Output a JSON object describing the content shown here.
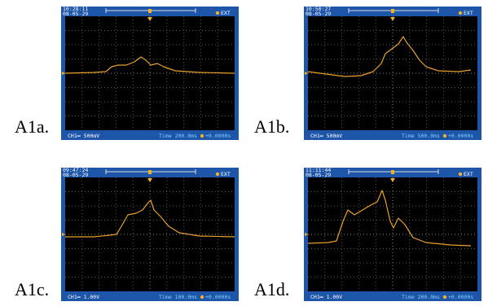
{
  "panels": [
    {
      "label": "A1a.",
      "time": "10:28:11",
      "date": "08-05-29",
      "trigger": "EXT",
      "channel": "CH1═ 500mV",
      "timebase": "Time 200.0ms",
      "offset": "+0.0000s"
    },
    {
      "label": "A1b.",
      "time": "10:50:27",
      "date": "08-05-29",
      "trigger": "EXT",
      "channel": "CH1═ 500mV",
      "timebase": "Time 500.0ms",
      "offset": "+0.0000s"
    },
    {
      "label": "A1c.",
      "time": "09:47:24",
      "date": "08-05-29",
      "trigger": "EXT",
      "channel": "CH1═ 1.00V",
      "timebase": "Time 100.0ms",
      "offset": "+0.0000s"
    },
    {
      "label": "A1d.",
      "time": "11:11:44",
      "date": "08-05-29",
      "trigger": "EXT",
      "channel": "CH1═ 1.00V",
      "timebase": "Time 200.0ms",
      "offset": "+0.0000s"
    }
  ]
}
